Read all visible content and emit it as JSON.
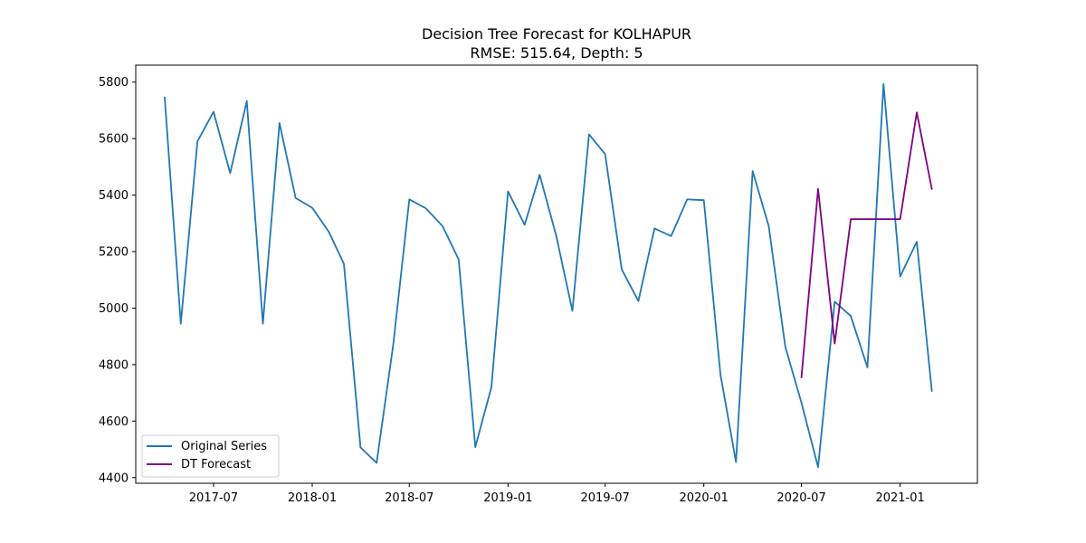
{
  "chart_data": {
    "type": "line",
    "title": "Decision Tree Forecast for KOLHAPUR",
    "subtitle": "RMSE: 515.64, Depth: 5",
    "xlabel": "",
    "ylabel": "",
    "xlim": [
      "2017-02-06",
      "2021-05-25"
    ],
    "ylim": [
      4380,
      5860
    ],
    "x_ticks": [
      "2017-07-01",
      "2018-01-01",
      "2018-07-01",
      "2019-01-01",
      "2019-07-01",
      "2020-01-01",
      "2020-07-01",
      "2021-01-01"
    ],
    "x_tick_labels": [
      "2017-07",
      "2018-01",
      "2018-07",
      "2019-01",
      "2019-07",
      "2020-01",
      "2020-07",
      "2021-01"
    ],
    "y_ticks": [
      4400,
      4600,
      4800,
      5000,
      5200,
      5400,
      5600,
      5800
    ],
    "y_tick_labels": [
      "4400",
      "4600",
      "4800",
      "5000",
      "5200",
      "5400",
      "5600",
      "5800"
    ],
    "grid": false,
    "legend_position": "lower-left",
    "series": [
      {
        "name": "Original Series",
        "color": "#1f77b4",
        "x": [
          "2017-04-01",
          "2017-05-01",
          "2017-06-01",
          "2017-07-01",
          "2017-08-01",
          "2017-09-01",
          "2017-10-01",
          "2017-11-01",
          "2017-12-01",
          "2018-01-01",
          "2018-02-01",
          "2018-03-01",
          "2018-04-01",
          "2018-05-01",
          "2018-06-01",
          "2018-07-01",
          "2018-08-01",
          "2018-09-01",
          "2018-10-01",
          "2018-11-01",
          "2018-12-01",
          "2019-01-01",
          "2019-02-01",
          "2019-03-01",
          "2019-04-01",
          "2019-05-01",
          "2019-06-01",
          "2019-07-01",
          "2019-08-01",
          "2019-09-01",
          "2019-10-01",
          "2019-11-01",
          "2019-12-01",
          "2020-01-01",
          "2020-02-01",
          "2020-03-01",
          "2020-04-01",
          "2020-05-01",
          "2020-06-01",
          "2020-07-01",
          "2020-08-01",
          "2020-09-01",
          "2020-10-01",
          "2020-11-01",
          "2020-12-01",
          "2021-01-01",
          "2021-02-01",
          "2021-03-01"
        ],
        "values": [
          5745,
          4945,
          5590,
          5695,
          5478,
          5733,
          4945,
          5655,
          5390,
          5355,
          5270,
          5157,
          4507,
          4452,
          4870,
          5385,
          5353,
          5290,
          5172,
          4508,
          4720,
          5413,
          5295,
          5472,
          5255,
          4990,
          5615,
          5545,
          5137,
          5025,
          5282,
          5255,
          5385,
          5382,
          4765,
          4455,
          5485,
          5290,
          4862,
          4665,
          4437,
          5023,
          4972,
          4790,
          5793,
          5112,
          5235,
          4707
        ]
      },
      {
        "name": "DT Forecast",
        "color": "#800080",
        "x": [
          "2020-07-01",
          "2020-08-01",
          "2020-09-01",
          "2020-10-01",
          "2020-11-01",
          "2020-12-01",
          "2021-01-01",
          "2021-02-01",
          "2021-03-01"
        ],
        "values": [
          4755,
          5422,
          4875,
          5315,
          5315,
          5315,
          5315,
          5693,
          5422
        ]
      }
    ]
  }
}
